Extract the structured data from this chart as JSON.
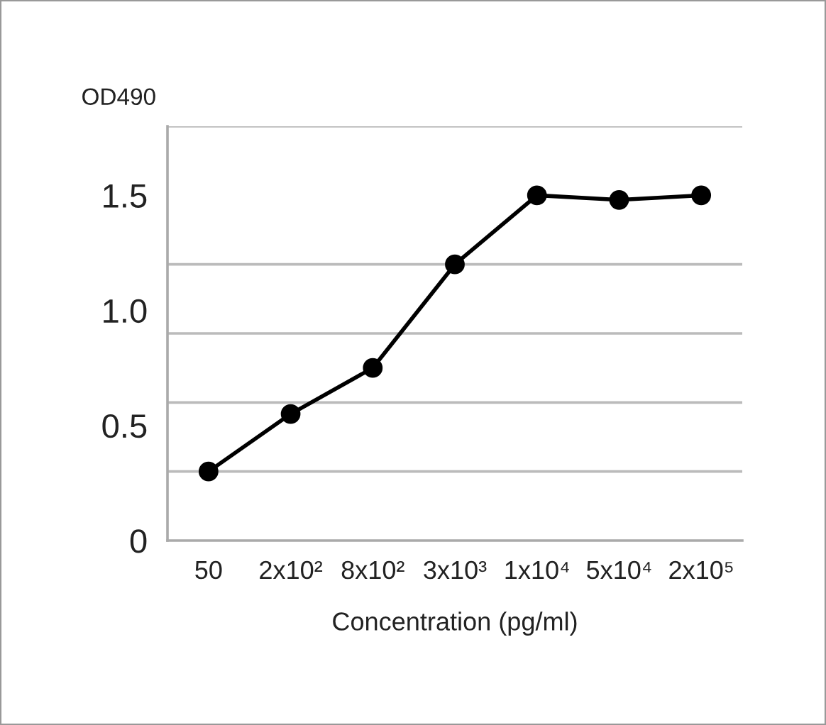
{
  "chart_data": {
    "type": "line",
    "xlabel": "Concentration (pg/ml)",
    "ylabel": "OD490",
    "categories": [
      "50",
      "2x10²",
      "8x10²",
      "3x10³",
      "1x10⁴",
      "5x10⁴",
      "2x10⁵"
    ],
    "series": [
      {
        "color": "#000000",
        "values": [
          0.3,
          0.55,
          0.75,
          1.2,
          1.5,
          1.48,
          1.5
        ]
      }
    ],
    "ylim": [
      0,
      1.8
    ],
    "yticks": [
      0,
      {
        "value": 0.3,
        "label": null
      },
      0.5,
      {
        "value": 0.6,
        "label": null
      },
      {
        "value": 0.9,
        "label": null
      },
      {
        "value": 1.0,
        "label": "1.0"
      },
      {
        "value": 1.2,
        "label": null
      },
      1.5,
      {
        "value": 1.8,
        "label": null
      }
    ],
    "grid": "y",
    "marker": "circle",
    "line_style": "solid",
    "legend": false
  }
}
